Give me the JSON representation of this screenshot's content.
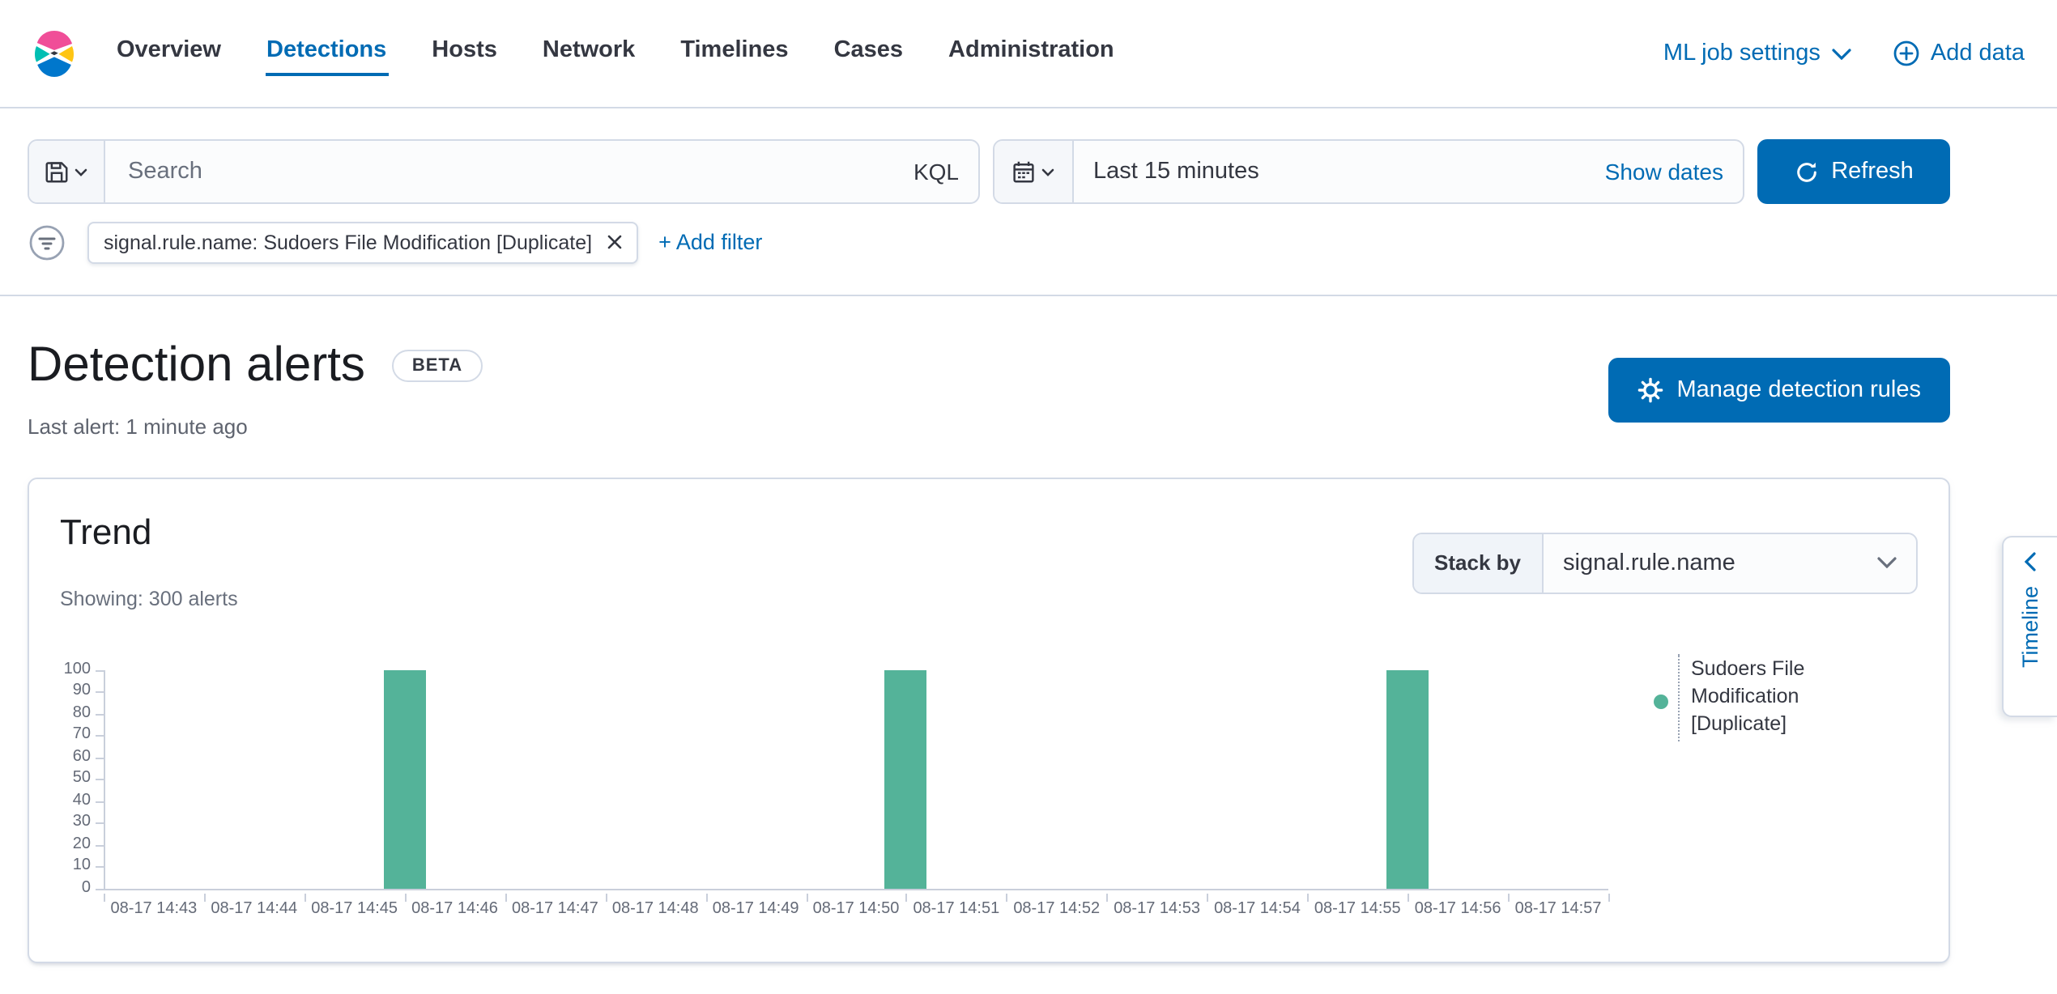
{
  "colors": {
    "primary": "#006BB4",
    "bar": "#54B399",
    "border": "#D3DAE6",
    "text": "#343741",
    "subdued": "#69707D"
  },
  "nav": {
    "items": [
      {
        "label": "Overview",
        "active": false
      },
      {
        "label": "Detections",
        "active": true
      },
      {
        "label": "Hosts",
        "active": false
      },
      {
        "label": "Network",
        "active": false
      },
      {
        "label": "Timelines",
        "active": false
      },
      {
        "label": "Cases",
        "active": false
      },
      {
        "label": "Administration",
        "active": false
      }
    ],
    "ml_job_settings_label": "ML job settings",
    "add_data_label": "Add data"
  },
  "query_bar": {
    "search_placeholder": "Search",
    "kql_label": "KQL",
    "time_range_value": "Last 15 minutes",
    "show_dates_label": "Show dates",
    "refresh_label": "Refresh"
  },
  "filter_bar": {
    "pill_label": "signal.rule.name: Sudoers File Modification [Duplicate]",
    "add_filter_label": "+ Add filter"
  },
  "page_header": {
    "title": "Detection alerts",
    "beta_badge": "BETA",
    "last_alert": "Last alert: 1 minute ago",
    "manage_rules_label": "Manage detection rules"
  },
  "trend_panel": {
    "title": "Trend",
    "showing": "Showing: 300 alerts",
    "stack_by_label": "Stack by",
    "stack_by_value": "signal.rule.name"
  },
  "timeline_tab": {
    "label": "Timeline"
  },
  "chart_data": {
    "type": "bar",
    "title": "Trend",
    "xlabel": "",
    "ylabel": "",
    "x": [
      "08-17 14:43",
      "08-17 14:44",
      "08-17 14:45",
      "08-17 14:46",
      "08-17 14:47",
      "08-17 14:48",
      "08-17 14:49",
      "08-17 14:50",
      "08-17 14:51",
      "08-17 14:52",
      "08-17 14:53",
      "08-17 14:54",
      "08-17 14:55",
      "08-17 14:56",
      "08-17 14:57"
    ],
    "series": [
      {
        "name": "Sudoers File Modification [Duplicate]",
        "color": "#54B399",
        "values": [
          0,
          0,
          0,
          100,
          0,
          0,
          0,
          0,
          100,
          0,
          0,
          0,
          0,
          100,
          0
        ]
      }
    ],
    "ylim": [
      0,
      100
    ],
    "ytick_step": 10,
    "grid": false,
    "legend_position": "right"
  }
}
